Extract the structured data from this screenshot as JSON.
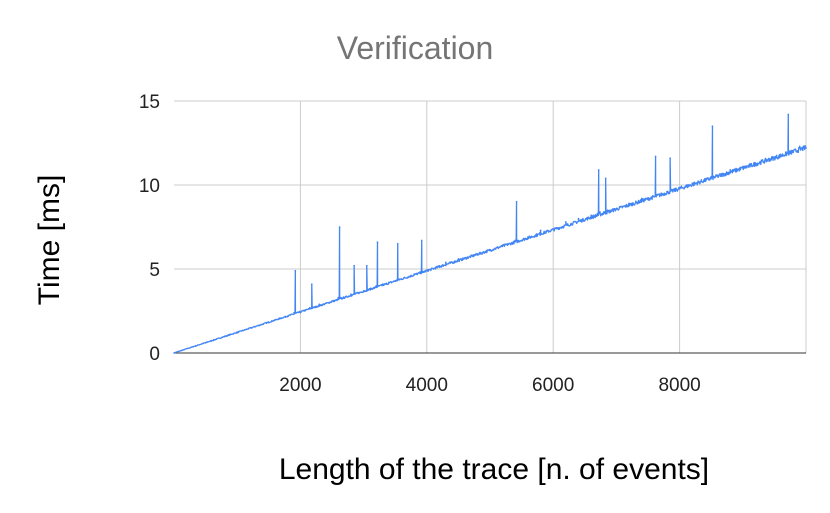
{
  "chart_data": {
    "type": "line",
    "title": "Verification",
    "xlabel": "Length of the trace [n. of events]",
    "ylabel": "Time [ms]",
    "xlim": [
      0,
      10000
    ],
    "ylim": [
      0,
      15
    ],
    "x_ticks": [
      "2000",
      "4000",
      "6000",
      "8000"
    ],
    "x_tick_values": [
      2000,
      4000,
      6000,
      8000
    ],
    "y_ticks": [
      "0",
      "5",
      "10",
      "15"
    ],
    "y_tick_values": [
      0,
      5,
      10,
      15
    ],
    "grid": true,
    "legend": "none",
    "series": [
      {
        "color": "#4285f4",
        "trend_slope_ms_per_event": 0.00122,
        "x": [
          0,
          500,
          1000,
          1500,
          1800,
          1900,
          1920,
          1940,
          2000,
          2150,
          2180,
          2300,
          2500,
          2600,
          2620,
          2640,
          2800,
          2850,
          2900,
          3000,
          3050,
          3100,
          3200,
          3220,
          3240,
          3300,
          3400,
          3500,
          3540,
          3560,
          3600,
          3800,
          3900,
          3920,
          3940,
          4000,
          4200,
          4300,
          4500,
          4800,
          5000,
          5200,
          5300,
          5400,
          5420,
          5440,
          5600,
          5800,
          6000,
          6200,
          6400,
          6600,
          6700,
          6720,
          6740,
          6800,
          6830,
          6860,
          7000,
          7200,
          7400,
          7600,
          7620,
          7640,
          7800,
          7850,
          7900,
          8000,
          8200,
          8400,
          8500,
          8520,
          8540,
          8800,
          9000,
          9200,
          9400,
          9600,
          9700,
          9720,
          9740,
          9800,
          9900,
          10000
        ],
        "values": [
          0,
          0.6,
          1.2,
          1.8,
          2.2,
          2.4,
          4.9,
          2.4,
          2.4,
          2.7,
          4.1,
          2.9,
          3.1,
          3.3,
          7.5,
          3.3,
          3.5,
          5.2,
          3.6,
          3.7,
          5.2,
          3.8,
          4.0,
          6.6,
          4.0,
          4.1,
          4.2,
          4.3,
          6.5,
          4.4,
          4.4,
          4.7,
          4.8,
          6.7,
          4.8,
          4.9,
          5.2,
          5.4,
          5.6,
          5.9,
          6.1,
          6.4,
          6.5,
          6.7,
          9.0,
          6.7,
          6.9,
          7.3,
          7.4,
          7.8,
          8.0,
          8.2,
          8.3,
          10.9,
          8.4,
          8.4,
          10.4,
          8.5,
          8.6,
          8.9,
          9.2,
          9.3,
          11.7,
          9.4,
          9.6,
          11.6,
          9.7,
          9.8,
          10.1,
          10.3,
          10.5,
          13.5,
          10.5,
          10.9,
          11.1,
          11.3,
          11.5,
          11.8,
          11.9,
          14.2,
          12.0,
          12.0,
          12.3,
          12.2
        ]
      }
    ]
  }
}
